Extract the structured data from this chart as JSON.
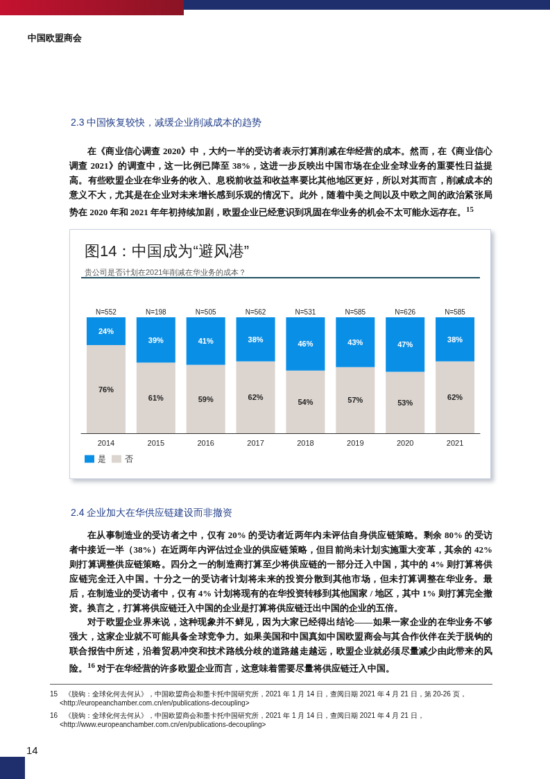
{
  "chart_data": {
    "type": "bar",
    "title": "图14：中国成为“避风港”",
    "subtitle": "贵公司是否计划在2021年削减在华业务的成本？",
    "categories": [
      "2014",
      "2015",
      "2016",
      "2017",
      "2018",
      "2019",
      "2020",
      "2021"
    ],
    "stacked": true,
    "legend": "bottom left",
    "series": [
      {
        "name": "否",
        "color": "#dcd4ce",
        "values": [
          76,
          61,
          59,
          62,
          54,
          57,
          53,
          62
        ],
        "value_labels": [
          "76%",
          "61%",
          "59%",
          "62%",
          "54%",
          "57%",
          "53%",
          "62%"
        ]
      },
      {
        "name": "是",
        "color": "#0a8fe6",
        "values": [
          24,
          39,
          41,
          38,
          46,
          43,
          47,
          38
        ],
        "value_labels": [
          "24%",
          "39%",
          "41%",
          "38%",
          "46%",
          "43%",
          "47%",
          "38%"
        ]
      }
    ],
    "annotations": [
      {
        "text": "N=552",
        "x": "2014",
        "y": 100
      },
      {
        "text": "N=198",
        "x": "2015",
        "y": 100
      },
      {
        "text": "N=505",
        "x": "2016",
        "y": 100
      },
      {
        "text": "N=562",
        "x": "2017",
        "y": 100
      },
      {
        "text": "N=531",
        "x": "2018",
        "y": 100
      },
      {
        "text": "N=585",
        "x": "2019",
        "y": 100
      },
      {
        "text": "N=626",
        "x": "2020",
        "y": 100
      },
      {
        "text": "N=585",
        "x": "2021",
        "y": 100
      },
      "中国欧盟商会",
      "2.3  中国恢复较快，减缓企业削减成本的趋势",
      "在《商业信心调查 2020》中，大约一半的受访者表示打算削减在华经营的成本。然而，在《商业信心调查 2021》的调查中，这一比例已降至 38%，这进一步反映出中国市场在企业全球业务的重要性日益提高。有些欧盟企业在华业务的收入、息税前收益和收益率要比其他地区更好，所以对其而言，削减成本的意义不大，尤其是在企业对未来增长感到乐观的情况下。此外，随着中美之间以及中欧之间的政治紧张局势在 2020 年和 2021 年年初持续加剧，欧盟企业已经意识到巩固在华业务的机会不太可能永远存在。$^{15}$",
      "2.4  企业加大在华供应链建设而非撤资",
      "在从事制造业的受访者之中，仅有 20% 的受访者近两年内未评估自身供应链策略。剩余 80% 的受访者中接近一半（38%）在近两年内评估过企业的供应链策略，但目前尚未计划实施重大变革，其余的 42% 则打算调整供应链策略。四分之一的制造商打算至少将供应链的一部分迁入中国，其中的 4% 则打算将供应链完全迁入中国。十分之一的受访者计划将未来的投资分散到其他市场，但未打算调整在华业务。最后，在制造业的受访者中，仅有 4% 计划将现有的在华投资转移到其他国家 / 地区，其中 1% 则打算完全撤资。换言之，打算将供应链迁入中国的企业是打算将供应链迁出中国的企业的五倍。",
      "对于欧盟企业界来说，这种现象并不鲜见，因为大家已经得出结论——如果一家企业的在华业务不够强大，这家企业就不可能具备全球竞争力。如果美国和中国真如中国欧盟商会与其合作伙伴在关于脱钩的联合报告中所述，沿着贸易冲突和技术路线分歧的道路越走越远，欧盟企业就必须尽量减少由此带来的风险。$^{16}$ 对于在华经营的许多欧盟企业而言，这意味着需要尽量将供应链迁入中国。",
      "15　《脱钩：全球化何去何从》，中国欧盟商会和墨卡托中国研究所，2021 年 1 月 14 日，查阅日期 2021 年 4 月 21 日，第 20-26 页，<http://europeanchamber.com.cn/en/publications-decoupling>",
      "16　《脱钩：全球化何去何从》，中国欧盟商会和墨卡托中国研究所，2021 年 1 月 14 日，查阅日期 2021 年 4 月 21 日，<http://www.europeanchamber.com.cn/en/publications-decoupling>",
      "14"
    ]
  }
}
